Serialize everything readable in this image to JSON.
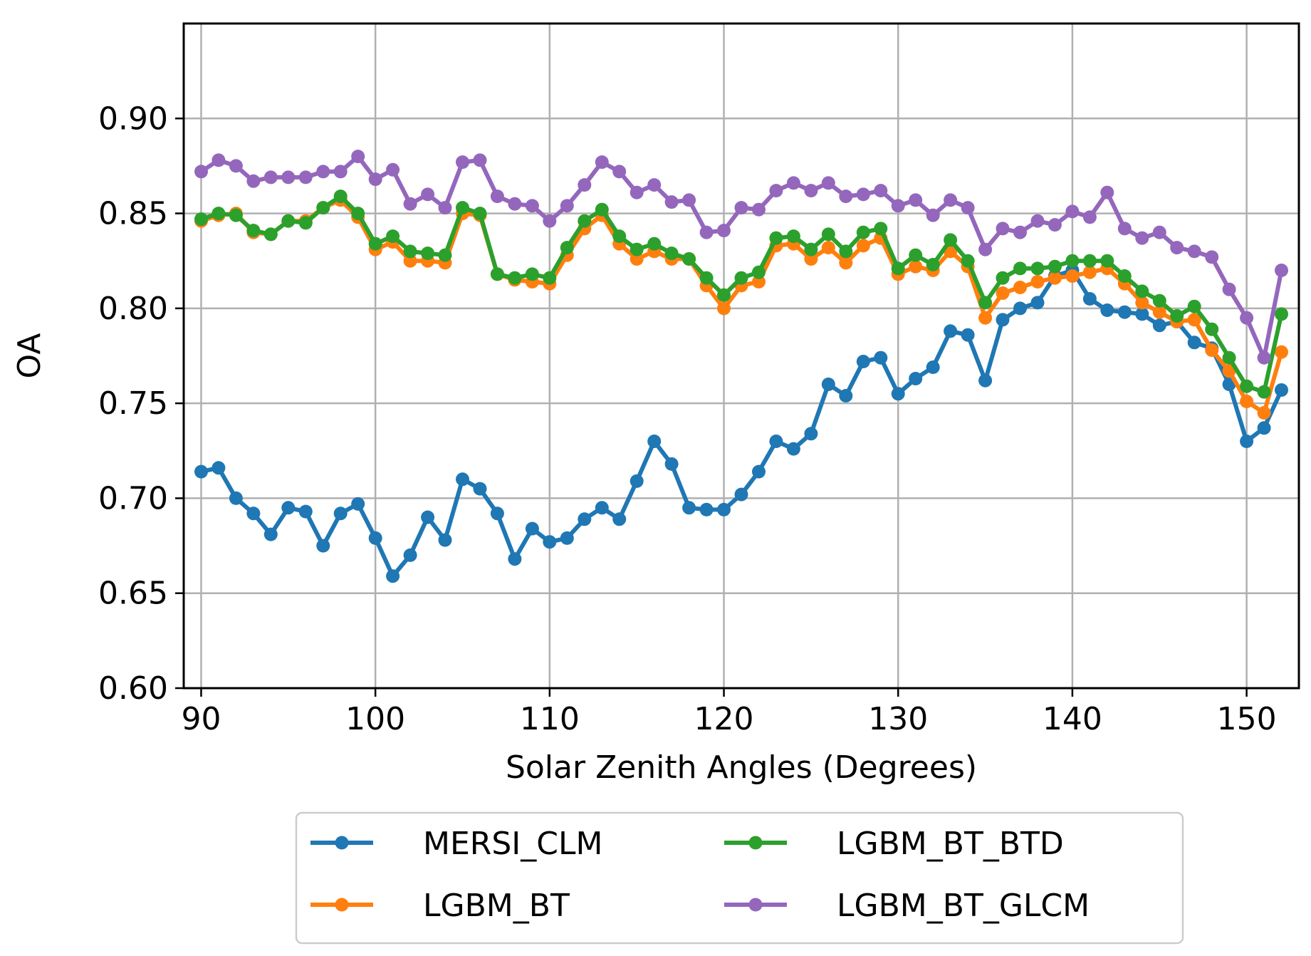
{
  "chart_data": {
    "type": "line",
    "xlabel": "Solar Zenith Angles (Degrees)",
    "ylabel": "OA",
    "xlim": [
      89,
      153
    ],
    "ylim": [
      0.6,
      0.95
    ],
    "xticks": [
      90,
      100,
      110,
      120,
      130,
      140,
      150
    ],
    "yticks": [
      0.6,
      0.65,
      0.7,
      0.75,
      0.8,
      0.85,
      0.9
    ],
    "xtick_labels": [
      "90",
      "100",
      "110",
      "120",
      "130",
      "140",
      "150"
    ],
    "ytick_labels": [
      "0.60",
      "0.65",
      "0.70",
      "0.75",
      "0.80",
      "0.85",
      "0.90"
    ],
    "grid": true,
    "legend_position": "bottom-center",
    "x": [
      90,
      91,
      92,
      93,
      94,
      95,
      96,
      97,
      98,
      99,
      100,
      101,
      102,
      103,
      104,
      105,
      106,
      107,
      108,
      109,
      110,
      111,
      112,
      113,
      114,
      115,
      116,
      117,
      118,
      119,
      120,
      121,
      122,
      123,
      124,
      125,
      126,
      127,
      128,
      129,
      130,
      131,
      132,
      133,
      134,
      135,
      136,
      137,
      138,
      139,
      140,
      141,
      142,
      143,
      144,
      145,
      146,
      147,
      148,
      149,
      150,
      151,
      152
    ],
    "series": [
      {
        "name": "MERSI_CLM",
        "color": "#1f77b4",
        "values": [
          0.714,
          0.716,
          0.7,
          0.692,
          0.681,
          0.695,
          0.693,
          0.675,
          0.692,
          0.697,
          0.679,
          0.659,
          0.67,
          0.69,
          0.678,
          0.71,
          0.705,
          0.692,
          0.668,
          0.684,
          0.677,
          0.679,
          0.689,
          0.695,
          0.689,
          0.709,
          0.73,
          0.718,
          0.695,
          0.694,
          0.694,
          0.702,
          0.714,
          0.73,
          0.726,
          0.734,
          0.76,
          0.754,
          0.772,
          0.774,
          0.755,
          0.763,
          0.769,
          0.788,
          0.786,
          0.762,
          0.794,
          0.8,
          0.803,
          0.817,
          0.82,
          0.805,
          0.799,
          0.798,
          0.797,
          0.791,
          0.793,
          0.782,
          0.779,
          0.76,
          0.73,
          0.737,
          0.757
        ]
      },
      {
        "name": "LGBM_BT",
        "color": "#ff7f0e",
        "values": [
          0.846,
          0.849,
          0.85,
          0.84,
          0.839,
          0.846,
          0.846,
          0.853,
          0.857,
          0.848,
          0.831,
          0.835,
          0.825,
          0.825,
          0.824,
          0.85,
          0.849,
          0.818,
          0.815,
          0.814,
          0.813,
          0.828,
          0.842,
          0.849,
          0.834,
          0.826,
          0.83,
          0.826,
          0.826,
          0.812,
          0.8,
          0.812,
          0.814,
          0.833,
          0.834,
          0.826,
          0.832,
          0.824,
          0.833,
          0.837,
          0.818,
          0.822,
          0.82,
          0.83,
          0.822,
          0.795,
          0.808,
          0.811,
          0.814,
          0.816,
          0.817,
          0.819,
          0.821,
          0.813,
          0.803,
          0.798,
          0.793,
          0.794,
          0.778,
          0.767,
          0.751,
          0.745,
          0.777
        ]
      },
      {
        "name": "LGBM_BT_BTD",
        "color": "#2ca02c",
        "values": [
          0.847,
          0.85,
          0.849,
          0.841,
          0.839,
          0.846,
          0.845,
          0.853,
          0.859,
          0.85,
          0.834,
          0.838,
          0.83,
          0.829,
          0.828,
          0.853,
          0.85,
          0.818,
          0.816,
          0.818,
          0.816,
          0.832,
          0.846,
          0.852,
          0.838,
          0.831,
          0.834,
          0.829,
          0.826,
          0.816,
          0.807,
          0.816,
          0.819,
          0.837,
          0.838,
          0.831,
          0.839,
          0.83,
          0.84,
          0.842,
          0.821,
          0.828,
          0.823,
          0.836,
          0.825,
          0.803,
          0.816,
          0.821,
          0.821,
          0.822,
          0.825,
          0.825,
          0.825,
          0.817,
          0.809,
          0.804,
          0.796,
          0.801,
          0.789,
          0.774,
          0.759,
          0.756,
          0.797
        ]
      },
      {
        "name": "LGBM_BT_GLCM",
        "color": "#9467bd",
        "values": [
          0.872,
          0.878,
          0.875,
          0.867,
          0.869,
          0.869,
          0.869,
          0.872,
          0.872,
          0.88,
          0.868,
          0.873,
          0.855,
          0.86,
          0.853,
          0.877,
          0.878,
          0.859,
          0.855,
          0.854,
          0.846,
          0.854,
          0.865,
          0.877,
          0.872,
          0.861,
          0.865,
          0.856,
          0.857,
          0.84,
          0.841,
          0.853,
          0.852,
          0.862,
          0.866,
          0.862,
          0.866,
          0.859,
          0.86,
          0.862,
          0.854,
          0.857,
          0.849,
          0.857,
          0.853,
          0.831,
          0.842,
          0.84,
          0.846,
          0.844,
          0.851,
          0.848,
          0.861,
          0.842,
          0.837,
          0.84,
          0.832,
          0.83,
          0.827,
          0.81,
          0.795,
          0.774,
          0.82
        ]
      }
    ]
  }
}
